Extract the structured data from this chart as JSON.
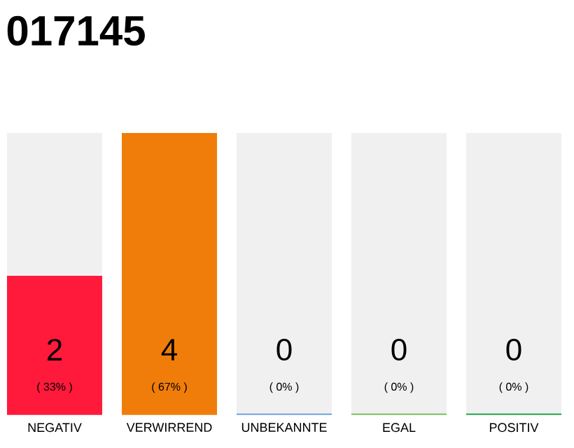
{
  "chart_data": {
    "type": "bar",
    "title": "017145",
    "categories": [
      "NEGATIV",
      "VERWIRREND",
      "UNBEKANNTE",
      "EGAL",
      "POSITIV"
    ],
    "values": [
      33,
      67,
      0,
      0,
      0
    ],
    "colors": [
      "#ff1a3c",
      "#f07d0a",
      "#6f9fe0",
      "#77c05e",
      "#22a34a"
    ],
    "value_labels": [
      "( 33% )",
      "( 67% )",
      "( 0% )",
      "( 0% )",
      "( 0% )"
    ],
    "annotations": [
      "2",
      "4",
      "0",
      "0",
      "0"
    ]
  }
}
